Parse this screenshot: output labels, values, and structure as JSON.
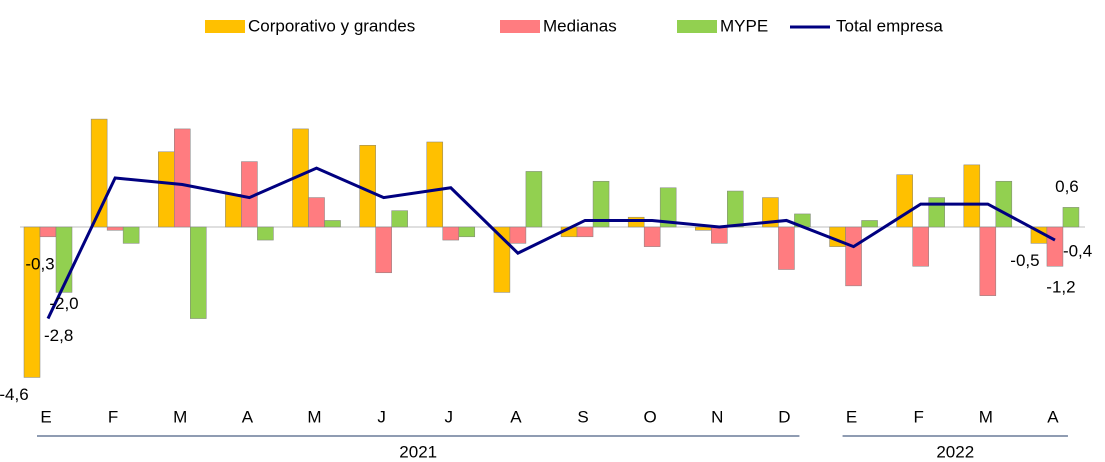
{
  "chart_data": {
    "type": "bar_line",
    "groups": [
      {
        "label": "2021",
        "categories": [
          "E",
          "F",
          "M",
          "A",
          "M",
          "J",
          "J",
          "A",
          "S",
          "O",
          "N",
          "D"
        ]
      },
      {
        "label": "2022",
        "categories": [
          "E",
          "F",
          "M",
          "A"
        ]
      }
    ],
    "series": [
      {
        "name": "Corporativo y grandes",
        "type": "bar",
        "color": "#ffc000",
        "values": [
          -4.6,
          3.3,
          2.3,
          1.0,
          3.0,
          2.5,
          2.6,
          -2.0,
          -0.3,
          0.3,
          -0.1,
          0.9,
          -0.6,
          1.6,
          1.9,
          -0.5
        ],
        "value_labels": [
          "-4,6",
          null,
          null,
          null,
          null,
          null,
          null,
          null,
          null,
          null,
          null,
          null,
          null,
          null,
          null,
          "-0,5"
        ]
      },
      {
        "name": "Medianas",
        "type": "bar",
        "color": "#ff7c80",
        "values": [
          -0.3,
          -0.1,
          3.0,
          2.0,
          0.9,
          -1.4,
          -0.4,
          -0.5,
          -0.3,
          -0.6,
          -0.5,
          -1.3,
          -1.8,
          -1.2,
          -2.1,
          -1.2
        ],
        "value_labels": [
          "-0,3",
          null,
          null,
          null,
          null,
          null,
          null,
          null,
          null,
          null,
          null,
          null,
          null,
          null,
          null,
          "-1,2"
        ]
      },
      {
        "name": "MYPE",
        "type": "bar",
        "color": "#92d050",
        "values": [
          -2.0,
          -0.5,
          -2.8,
          -0.4,
          0.2,
          0.5,
          -0.3,
          1.7,
          1.4,
          1.2,
          1.1,
          0.4,
          0.2,
          0.9,
          1.4,
          0.6
        ],
        "value_labels": [
          "-2,0",
          null,
          null,
          null,
          null,
          null,
          null,
          null,
          null,
          null,
          null,
          null,
          null,
          null,
          null,
          "0,6"
        ]
      },
      {
        "name": "Total empresa",
        "type": "line",
        "color": "#000080",
        "values": [
          -2.8,
          1.5,
          1.3,
          0.9,
          1.8,
          0.9,
          1.2,
          -0.8,
          0.2,
          0.2,
          0.0,
          0.2,
          -0.6,
          0.7,
          0.7,
          -0.4
        ],
        "value_labels": [
          "-2,8",
          null,
          null,
          null,
          null,
          null,
          null,
          null,
          null,
          null,
          null,
          null,
          null,
          null,
          null,
          "-0,4"
        ]
      }
    ]
  }
}
